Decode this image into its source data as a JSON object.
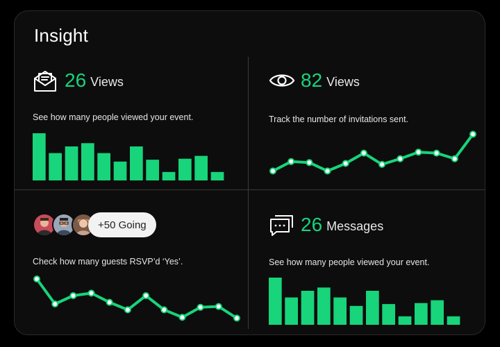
{
  "title": "Insight",
  "accent": "#18d47a",
  "panels": {
    "views_left": {
      "icon": "open-envelope-icon",
      "value": "26",
      "label": "Views",
      "description": "See how many people viewed your event.",
      "chart_data": {
        "type": "bar",
        "values": [
          10,
          5.8,
          7.2,
          7.9,
          5.8,
          4,
          7.2,
          4.4,
          1.8,
          4.6,
          5.2,
          1.8
        ]
      }
    },
    "views_right": {
      "icon": "eye-icon",
      "value": "82",
      "label": "Views",
      "description": "Track the number of invitations sent.",
      "chart_data": {
        "type": "line",
        "values": [
          2,
          4,
          3.8,
          2,
          3.6,
          5.8,
          3.4,
          4.6,
          6,
          5.8,
          4.6,
          9.8
        ]
      }
    },
    "going": {
      "avatars": [
        "avatar-red",
        "avatar-glasses",
        "avatar-blond"
      ],
      "badge": "+50 Going",
      "description": "Check how many guests RSVP’d ‘Yes’.",
      "chart_data": {
        "type": "line",
        "values": [
          10,
          4,
          6,
          6.6,
          4.4,
          2.6,
          6,
          2.6,
          0.8,
          3.2,
          3.4,
          0.6
        ]
      }
    },
    "messages": {
      "icon": "chat-bubbles-icon",
      "value": "26",
      "label": "Messages",
      "description": "See how many people viewed your event.",
      "chart_data": {
        "type": "bar",
        "values": [
          10,
          5.8,
          7.2,
          7.9,
          5.8,
          4,
          7.2,
          4.4,
          1.8,
          4.6,
          5.2,
          1.8
        ]
      }
    }
  }
}
